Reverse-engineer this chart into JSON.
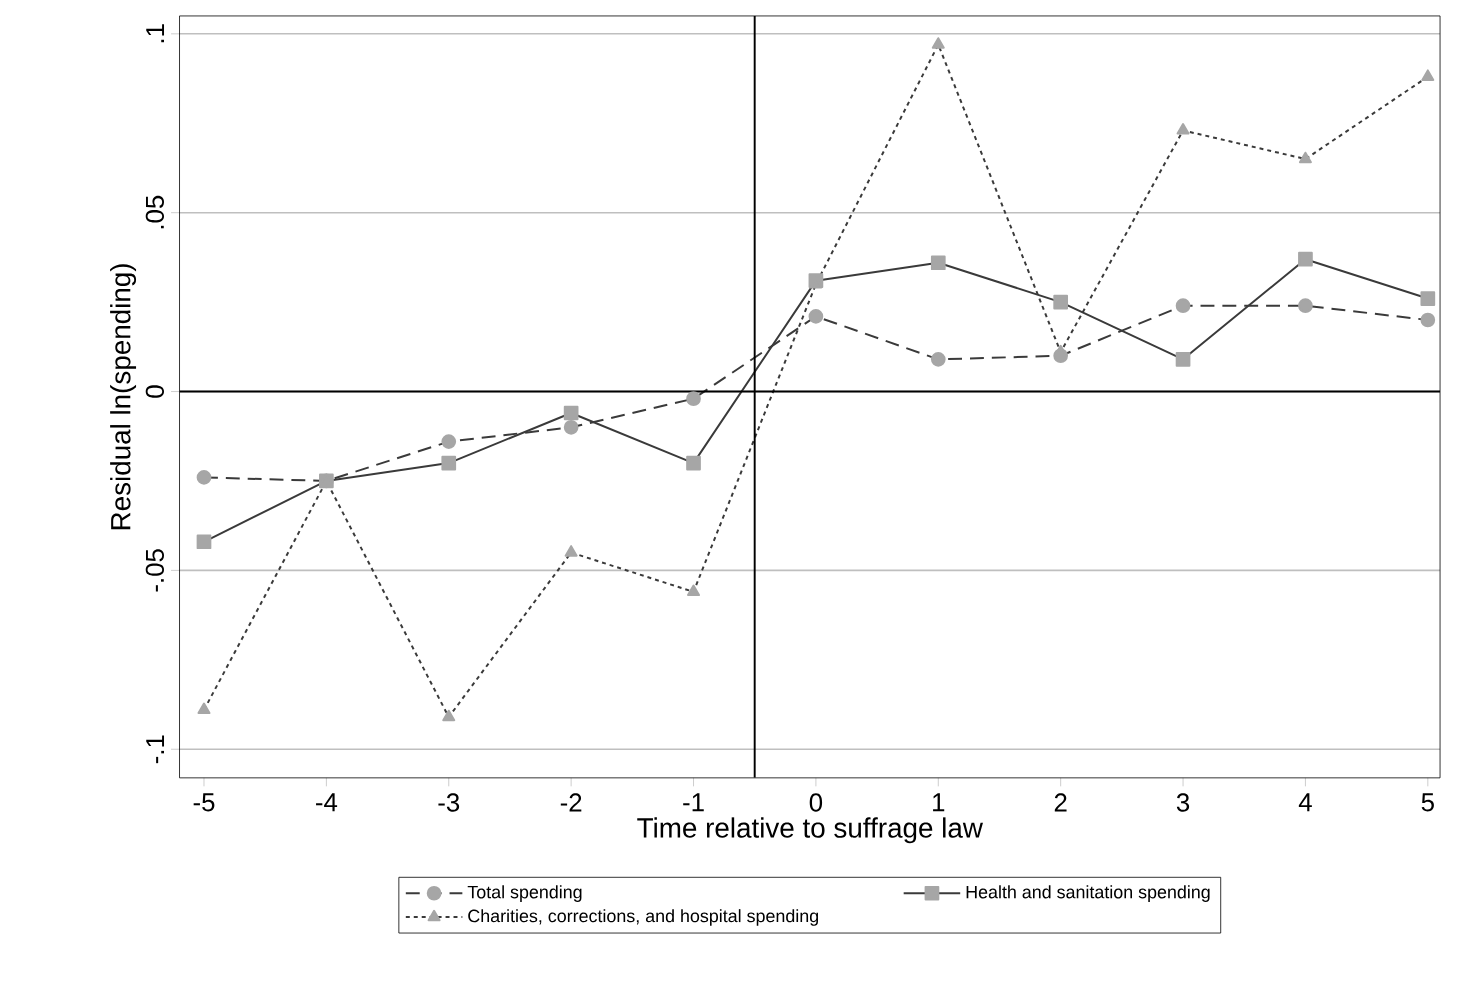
{
  "chart_data": {
    "type": "line",
    "xlabel": "Time relative to suffrage law",
    "ylabel": "Residual ln(spending)",
    "x": [
      -5,
      -4,
      -3,
      -2,
      -1,
      0,
      1,
      2,
      3,
      4,
      5
    ],
    "series": [
      {
        "name": "Total spending",
        "color": "#3a3a3a",
        "marker": "circle",
        "line_style": "dashed",
        "values": [
          -0.024,
          -0.025,
          -0.014,
          -0.01,
          -0.002,
          0.021,
          0.009,
          0.01,
          0.024,
          0.024,
          0.02
        ]
      },
      {
        "name": "Health and sanitation spending",
        "color": "#3a3a3a",
        "marker": "square",
        "line_style": "solid",
        "values": [
          -0.042,
          -0.025,
          -0.02,
          -0.006,
          -0.02,
          0.031,
          0.036,
          0.025,
          0.009,
          0.037,
          0.026
        ]
      },
      {
        "name": "Charities, corrections, and hospital spending",
        "color": "#3a3a3a",
        "marker": "triangle",
        "line_style": "dotted",
        "values": [
          -0.089,
          -0.025,
          -0.091,
          -0.045,
          -0.056,
          0.03,
          0.097,
          0.011,
          0.073,
          0.065,
          0.088
        ]
      }
    ],
    "xlim": [
      -5.2,
      5.1
    ],
    "ylim": [
      -0.108,
      0.105
    ],
    "xticks": [
      -5,
      -4,
      -3,
      -2,
      -1,
      0,
      1,
      2,
      3,
      4,
      5
    ],
    "yticks": [
      {
        "value": -0.1,
        "label": "-.1"
      },
      {
        "value": -0.05,
        "label": "-.05"
      },
      0,
      {
        "value": 0.05,
        "label": ".05"
      },
      {
        "value": 0.1,
        "label": ".1"
      }
    ],
    "grid": "y",
    "legend": "bottom",
    "ref_lines": [
      {
        "axis": "y",
        "value": 0,
        "color": "#000000"
      },
      {
        "axis": "x",
        "value": -0.5,
        "color": "#000000"
      }
    ]
  }
}
